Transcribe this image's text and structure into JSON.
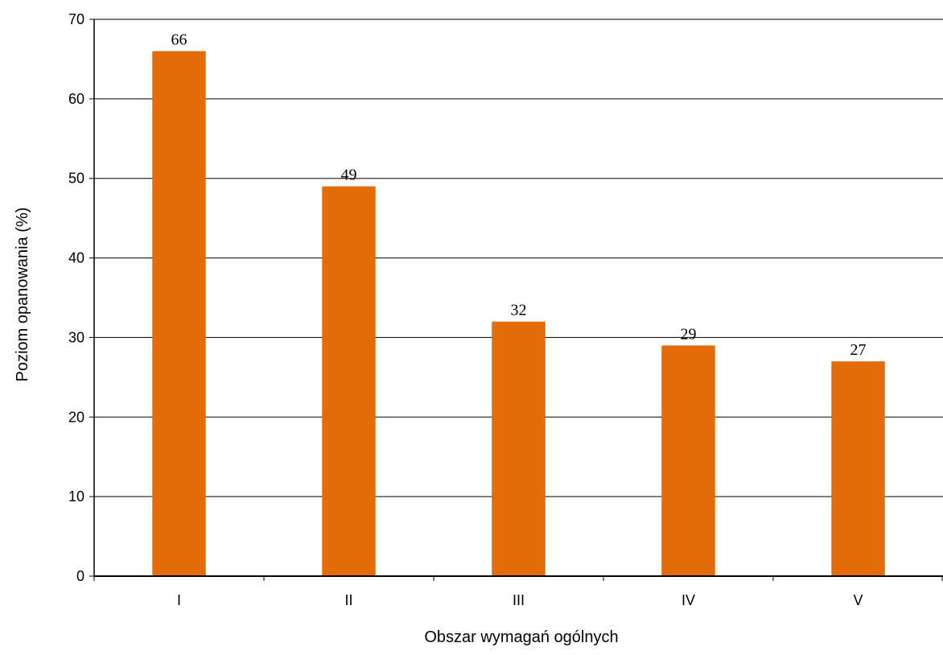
{
  "chart_data": {
    "type": "bar",
    "categories": [
      "I",
      "II",
      "III",
      "IV",
      "V"
    ],
    "values": [
      66,
      49,
      32,
      29,
      27
    ],
    "data_labels": [
      "66",
      "49",
      "32",
      "29",
      "27"
    ],
    "xlabel": "Obszar wymagań ogólnych",
    "ylabel": "Poziom opanowania (%)",
    "ylim": [
      0,
      70
    ],
    "yticks": [
      0,
      10,
      20,
      30,
      40,
      50,
      60,
      70
    ],
    "grid": true,
    "legend": "none",
    "bar_color": "#E36C0A"
  }
}
